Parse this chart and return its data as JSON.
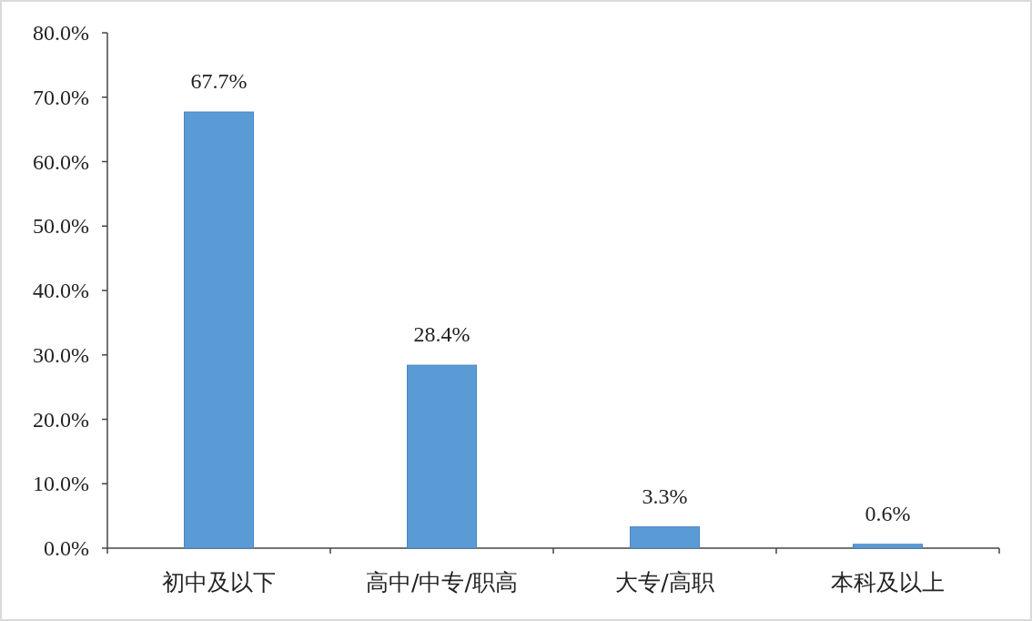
{
  "chart_data": {
    "type": "bar",
    "categories": [
      "初中及以下",
      "高中/中专/职高",
      "大专/高职",
      "本科及以上"
    ],
    "values": [
      67.7,
      28.4,
      3.3,
      0.6
    ],
    "color": "#5b9bd5",
    "value_labels": [
      "67.7%",
      "28.4%",
      "3.3%",
      "0.6%"
    ],
    "ylim": [
      0,
      80
    ],
    "yticks": [
      {
        "value": 0,
        "label": "0.0%"
      },
      {
        "value": 10,
        "label": "10.0%"
      },
      {
        "value": 20,
        "label": "20.0%"
      },
      {
        "value": 30,
        "label": "30.0%"
      },
      {
        "value": 40,
        "label": "40.0%"
      },
      {
        "value": 50,
        "label": "50.0%"
      },
      {
        "value": 60,
        "label": "60.0%"
      },
      {
        "value": 70,
        "label": "70.0%"
      },
      {
        "value": 80,
        "label": "80.0%"
      }
    ]
  }
}
